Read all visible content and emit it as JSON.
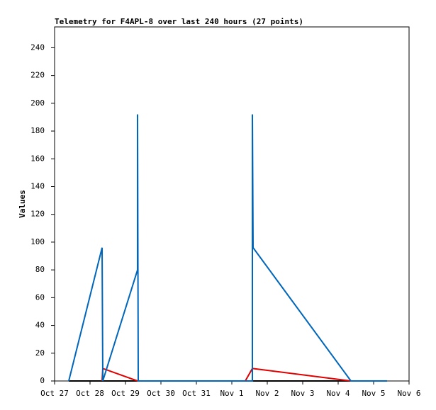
{
  "chart_data": {
    "type": "line",
    "title": "Telemetry for F4APL-8 over last 240 hours (27 points)",
    "y_label": "Values",
    "xlim": [
      0,
      10
    ],
    "xticks": [
      {
        "value": 0,
        "label": "Oct 27"
      },
      {
        "value": 1,
        "label": "Oct 28"
      },
      {
        "value": 2,
        "label": "Oct 29"
      },
      {
        "value": 3,
        "label": "Oct 30"
      },
      {
        "value": 4,
        "label": "Oct 31"
      },
      {
        "value": 5,
        "label": "Nov 1"
      },
      {
        "value": 6,
        "label": "Nov 2"
      },
      {
        "value": 7,
        "label": "Nov 3"
      },
      {
        "value": 8,
        "label": "Nov 4"
      },
      {
        "value": 9,
        "label": "Nov 5"
      },
      {
        "value": 10,
        "label": "Nov 6"
      }
    ],
    "ylim": [
      0,
      255
    ],
    "yticks": [
      0,
      20,
      40,
      60,
      80,
      100,
      120,
      140,
      160,
      180,
      200,
      220,
      240
    ],
    "series": [
      {
        "color": "#000000",
        "x": [
          0.4,
          9.38
        ],
        "values": [
          0,
          0
        ]
      },
      {
        "color": "#e00000",
        "x": [
          1.34,
          1.36,
          2.34,
          5.38,
          5.58,
          8.36,
          9.38
        ],
        "values": [
          0,
          9,
          0,
          0,
          9,
          0,
          0
        ]
      },
      {
        "color": "#0066bb",
        "x": [
          0.4,
          1.34,
          1.36,
          2.34,
          2.34,
          2.36,
          5.58,
          5.58,
          5.6,
          8.36,
          9.38
        ],
        "values": [
          0,
          96,
          0,
          80,
          192,
          0,
          0,
          192,
          96,
          0,
          0
        ]
      }
    ]
  }
}
